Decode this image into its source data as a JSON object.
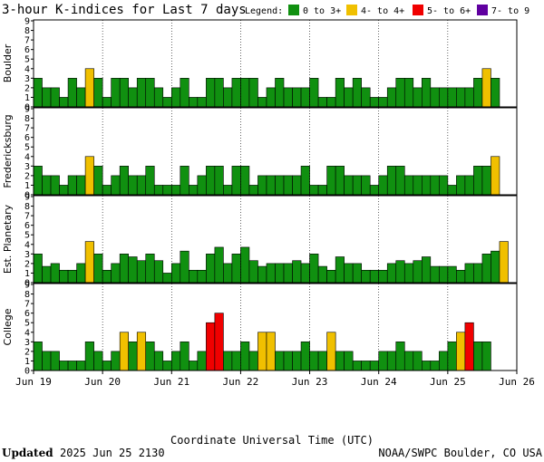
{
  "title": "3-hour K-indices for Last 7 days",
  "legend": {
    "label": "Legend:",
    "items": [
      {
        "label": "0 to 3+",
        "color": "#109010"
      },
      {
        "label": "4- to 4+",
        "color": "#f0c000"
      },
      {
        "label": "5- to 6+",
        "color": "#f00000"
      },
      {
        "label": "7- to 9",
        "color": "#6000a0"
      }
    ]
  },
  "footer": {
    "updated_label": "Updated",
    "updated_value": "2025 Jun 25 2130",
    "source": "NOAA/SWPC Boulder, CO USA"
  },
  "chart_data": {
    "type": "bar",
    "xlabel": "Coordinate Universal Time (UTC)",
    "x_ticks": [
      "Jun 19",
      "Jun 20",
      "Jun 21",
      "Jun 22",
      "Jun 23",
      "Jun 24",
      "Jun 25",
      "Jun 26"
    ],
    "ylim": [
      0,
      9
    ],
    "y_ticks": [
      0,
      1,
      2,
      3,
      4,
      5,
      6,
      7,
      8,
      9
    ],
    "intervals_per_day": 8,
    "panels": [
      {
        "name": "Boulder",
        "values": [
          3,
          2,
          2,
          1,
          3,
          2,
          4,
          3,
          1,
          3,
          3,
          2,
          3,
          3,
          2,
          1,
          2,
          3,
          1,
          1,
          3,
          3,
          2,
          3,
          3,
          3,
          1,
          2,
          3,
          2,
          2,
          2,
          3,
          1,
          1,
          3,
          2,
          3,
          2,
          1,
          1,
          2,
          3,
          3,
          2,
          3,
          2,
          2,
          2,
          2,
          2,
          3,
          4,
          3,
          0
        ]
      },
      {
        "name": "Fredericksburg",
        "values": [
          3,
          2,
          2,
          1,
          2,
          2,
          4,
          3,
          1,
          2,
          3,
          2,
          2,
          3,
          1,
          1,
          1,
          3,
          1,
          2,
          3,
          3,
          1,
          3,
          3,
          1,
          2,
          2,
          2,
          2,
          2,
          3,
          1,
          1,
          3,
          3,
          2,
          2,
          2,
          1,
          2,
          3,
          3,
          2,
          2,
          2,
          2,
          2,
          1,
          2,
          2,
          3,
          3,
          4,
          0
        ]
      },
      {
        "name": "Est. Planetary",
        "values": [
          3,
          1.7,
          2,
          1.3,
          1.3,
          2,
          4.3,
          3,
          1.3,
          2,
          3,
          2.7,
          2.3,
          3,
          2.3,
          1,
          2,
          3.3,
          1.3,
          1.3,
          3,
          3.7,
          2,
          3,
          3.7,
          2.3,
          1.7,
          2,
          2,
          2,
          2.3,
          2,
          3,
          1.7,
          1.3,
          2.7,
          2,
          2,
          1.3,
          1.3,
          1.3,
          2,
          2.3,
          2,
          2.3,
          2.7,
          1.7,
          1.7,
          1.7,
          1.3,
          2,
          2,
          3,
          3.3,
          4.3
        ]
      },
      {
        "name": "College",
        "values": [
          3,
          2,
          2,
          1,
          1,
          1,
          3,
          2,
          1,
          2,
          4,
          3,
          4,
          3,
          2,
          1,
          2,
          3,
          1,
          2,
          5,
          6,
          2,
          2,
          3,
          2,
          4,
          4,
          2,
          2,
          2,
          3,
          2,
          2,
          4,
          2,
          2,
          1,
          1,
          1,
          2,
          2,
          3,
          2,
          2,
          1,
          1,
          2,
          3,
          4,
          5,
          3,
          3,
          0
        ]
      }
    ]
  }
}
